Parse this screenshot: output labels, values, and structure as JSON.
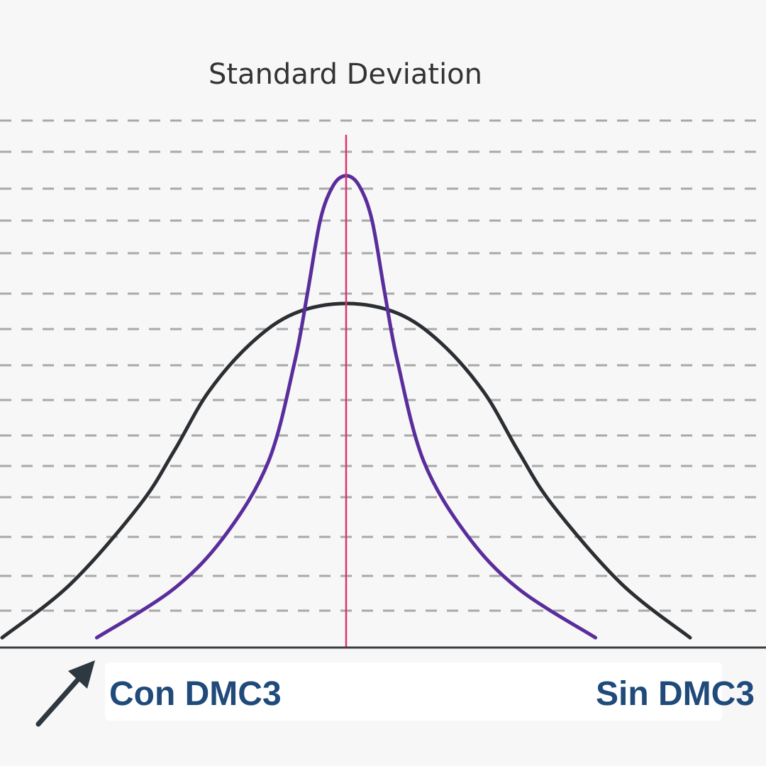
{
  "chart_data": {
    "type": "line",
    "title": "Standard Deviation",
    "xlabel": "",
    "ylabel": "",
    "xlim": [
      -4,
      4
    ],
    "ylim": [
      0,
      1
    ],
    "grid": {
      "horizontal": true,
      "style": "dashed",
      "count": 15
    },
    "mean_line": {
      "x": 0
    },
    "series": [
      {
        "name": "Sin DMC3",
        "color": "#2b2f33",
        "x": [
          -4.0,
          -3.2,
          -2.4,
          -2.0,
          -1.6,
          -1.1,
          -0.6,
          0.0,
          0.6,
          1.1,
          1.6,
          2.0,
          2.4,
          3.2,
          4.0
        ],
        "y": [
          0.02,
          0.13,
          0.29,
          0.4,
          0.52,
          0.62,
          0.68,
          0.7,
          0.68,
          0.62,
          0.52,
          0.4,
          0.29,
          0.13,
          0.02
        ]
      },
      {
        "name": "Con DMC3",
        "color": "#5a2d9c",
        "x": [
          -2.9,
          -2.0,
          -1.4,
          -0.9,
          -0.6,
          -0.45,
          -0.3,
          -0.15,
          0.0,
          0.15,
          0.3,
          0.45,
          0.6,
          0.9,
          1.4,
          2.0,
          2.9
        ],
        "y": [
          0.02,
          0.12,
          0.23,
          0.38,
          0.58,
          0.72,
          0.87,
          0.94,
          0.96,
          0.94,
          0.87,
          0.72,
          0.58,
          0.38,
          0.23,
          0.12,
          0.02
        ]
      }
    ],
    "legend": [
      {
        "label": "Con DMC3",
        "color": "#1f4a7a"
      },
      {
        "label": "Sin DMC3",
        "color": "#1f4a7a"
      }
    ],
    "colors": {
      "mean_line": "#e0316e",
      "grid": "#a9a9a9",
      "axis": "#3a3f44",
      "arrow": "#2e3840"
    }
  }
}
